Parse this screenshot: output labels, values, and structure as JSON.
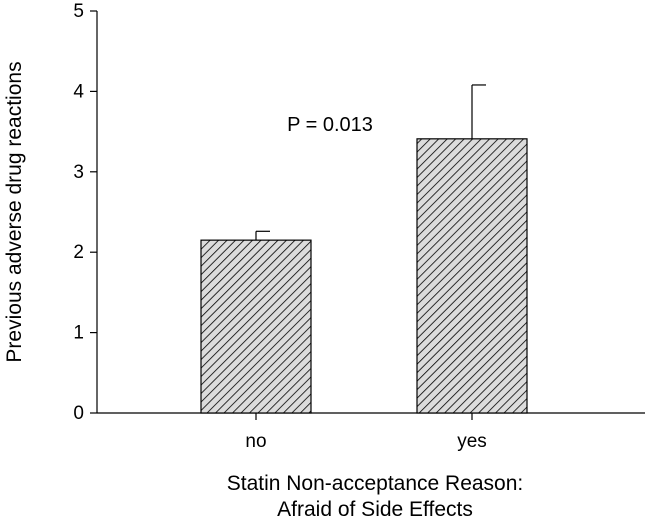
{
  "chart_data": {
    "type": "bar",
    "categories": [
      "no",
      "yes"
    ],
    "values": [
      2.15,
      3.41
    ],
    "error_bars_upper": [
      0.11,
      0.67
    ],
    "xlabel": [
      "Statin Non-acceptance Reason:",
      "Afraid of Side Effects"
    ],
    "ylabel": "Previous adverse drug reactions",
    "ylim": [
      0,
      5
    ],
    "yticks": [
      "0",
      "1",
      "2",
      "3",
      "4",
      "5"
    ],
    "annotation": "P = 0.013",
    "grid": false,
    "legend": "none",
    "bar_fill": "hatched",
    "colors": {
      "bar_fill": "#dcdcdc",
      "hatch": "#000000",
      "axis": "#000000"
    }
  }
}
